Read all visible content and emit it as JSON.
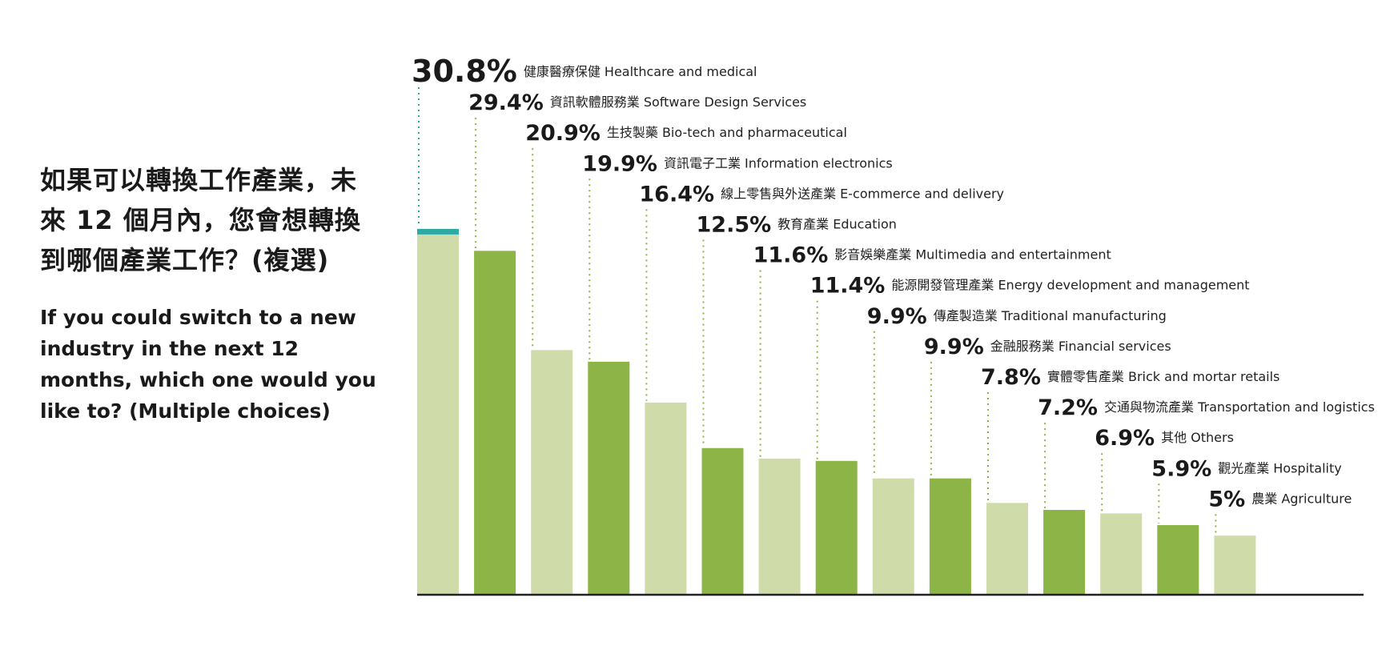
{
  "question": {
    "zh": "如果可以轉換工作產業，未來 12 個月內，您會想轉換到哪個產業工作？(複選)",
    "en": "If you could switch to a new industry in the next 12 months, which one would you like to? (Multiple choices)"
  },
  "chart_data": {
    "type": "bar",
    "title": "",
    "xlabel": "",
    "ylabel": "",
    "ylim": [
      0,
      35
    ],
    "grid": false,
    "colors": {
      "light": "#cfdcaa",
      "dark": "#8db446",
      "highlight": "#2eaaa6",
      "axis": "#222222"
    },
    "categories": [
      "健康醫療保健 Healthcare and medical",
      "資訊軟體服務業 Software Design Services",
      "生技製藥 Bio-tech and pharmaceutical",
      "資訊電子工業 Information electronics",
      "線上零售與外送產業 E-commerce and delivery",
      "教育產業 Education",
      "影音娛樂產業 Multimedia and entertainment",
      "能源開發管理產業 Energy development and management",
      "傳產製造業 Traditional manufacturing",
      "金融服務業 Financial services",
      "實體零售產業 Brick and mortar retails",
      "交通與物流產業 Transportation and logistics",
      "其他 Others",
      "觀光產業 Hospitality",
      "農業 Agriculture"
    ],
    "values": [
      30.8,
      29.4,
      20.9,
      19.9,
      16.4,
      12.5,
      11.6,
      11.4,
      9.9,
      9.9,
      7.8,
      7.2,
      6.9,
      5.9,
      5
    ],
    "value_labels": [
      "30.8%",
      "29.4%",
      "20.9%",
      "19.9%",
      "16.4%",
      "12.5%",
      "11.6%",
      "11.4%",
      "9.9%",
      "9.9%",
      "7.8%",
      "7.2%",
      "6.9%",
      "5.9%",
      "5%"
    ]
  }
}
